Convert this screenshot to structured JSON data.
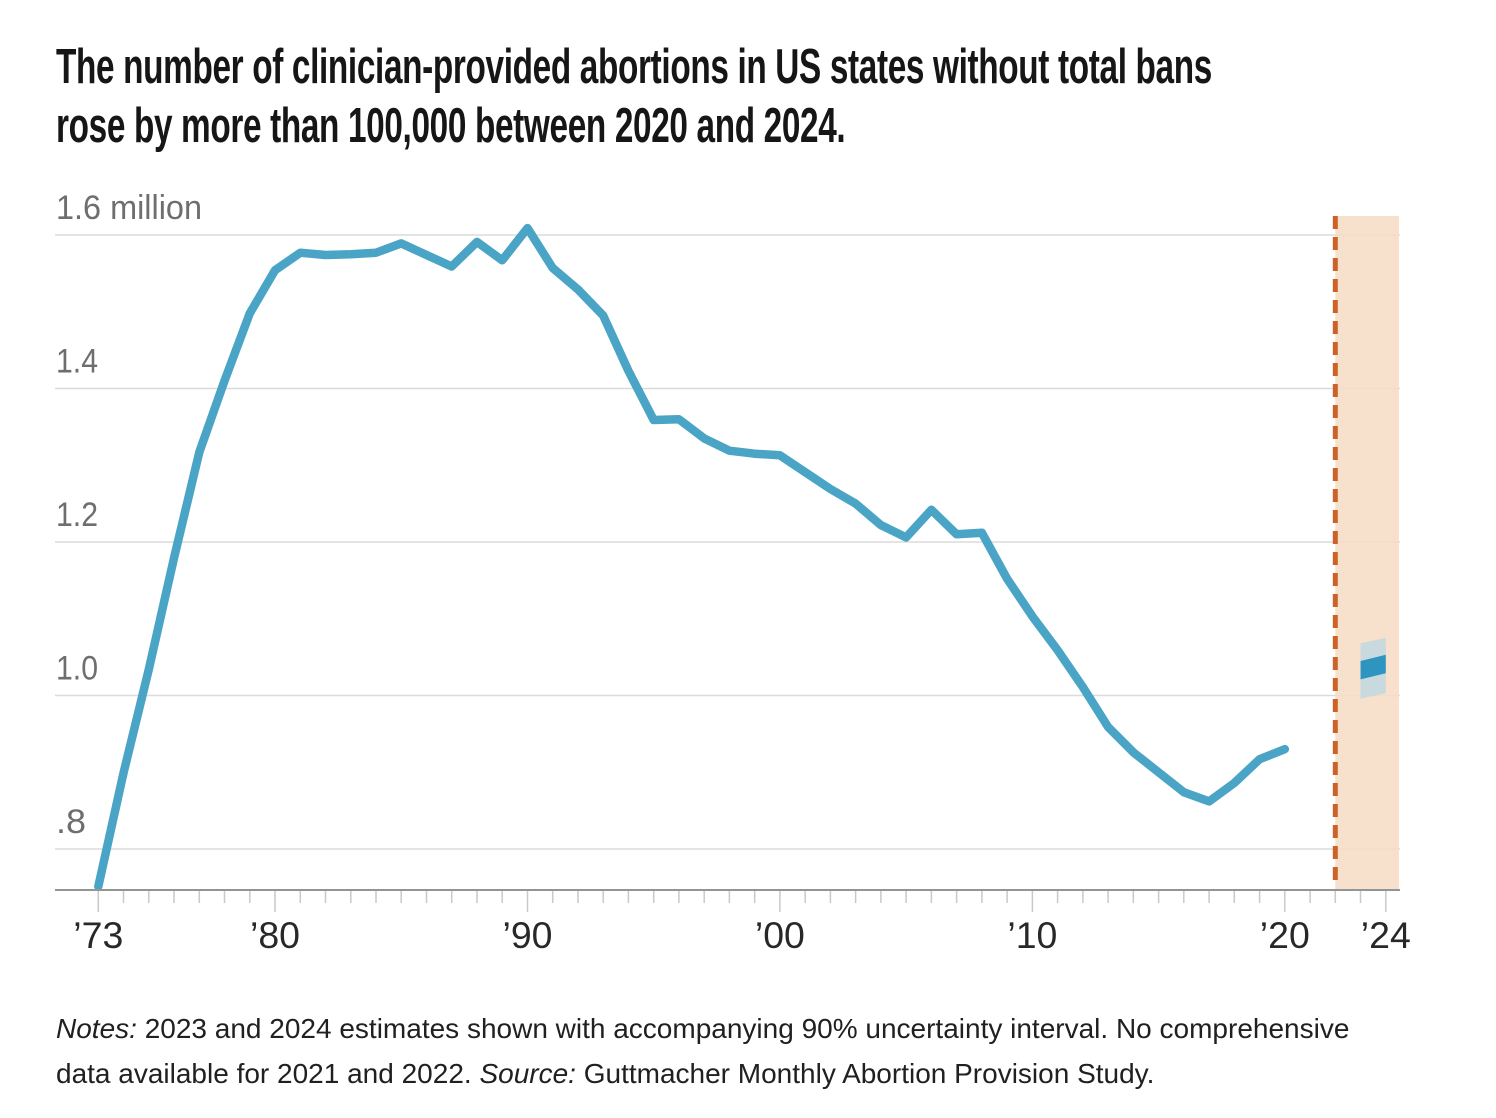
{
  "title": {
    "lines": [
      "The number of clinician-provided abortions in US states without total bans",
      "rose by more than 100,000 between 2020 and 2024."
    ]
  },
  "notes": {
    "lines": [
      {
        "parts": [
          {
            "text": "Notes:",
            "italic": true
          },
          {
            "text": " 2023 and 2024 estimates shown with accompanying 90% uncertainty interval. No comprehensive",
            "italic": false
          }
        ]
      },
      {
        "parts": [
          {
            "text": "data available for 2021 and 2022. ",
            "italic": false
          },
          {
            "text": "Source:",
            "italic": true
          },
          {
            "text": " Guttmacher Monthly Abortion Provision Study.",
            "italic": false
          }
        ]
      }
    ]
  },
  "chart_data": {
    "type": "line",
    "title": "Clinician-provided abortions in US states without total bans",
    "unit": "millions",
    "xlim": [
      1973,
      2024.5
    ],
    "ylim": [
      0.74,
      1.62
    ],
    "grid": "horizontal",
    "years": [
      1973,
      1974,
      1975,
      1976,
      1977,
      1978,
      1979,
      1980,
      1981,
      1982,
      1983,
      1984,
      1985,
      1986,
      1987,
      1988,
      1989,
      1990,
      1991,
      1992,
      1993,
      1994,
      1995,
      1996,
      1997,
      1998,
      1999,
      2000,
      2001,
      2002,
      2003,
      2004,
      2005,
      2006,
      2007,
      2008,
      2009,
      2010,
      2011,
      2012,
      2013,
      2014,
      2015,
      2016,
      2017,
      2018,
      2019,
      2020
    ],
    "values": [
      0.745,
      0.899,
      1.034,
      1.179,
      1.317,
      1.41,
      1.498,
      1.554,
      1.577,
      1.574,
      1.575,
      1.577,
      1.589,
      1.574,
      1.559,
      1.591,
      1.567,
      1.609,
      1.557,
      1.529,
      1.495,
      1.423,
      1.359,
      1.36,
      1.335,
      1.319,
      1.315,
      1.313,
      1.291,
      1.269,
      1.25,
      1.222,
      1.206,
      1.242,
      1.21,
      1.212,
      1.152,
      1.103,
      1.059,
      1.011,
      0.959,
      0.926,
      0.9,
      0.874,
      0.862,
      0.886,
      0.917,
      0.93
    ],
    "estimates": [
      {
        "year": 2023,
        "value": 1.033,
        "interval_low": 0.996,
        "interval_high": 1.068,
        "interval_label": "90% uncertainty interval"
      },
      {
        "year": 2024,
        "value": 1.041,
        "interval_low": 1.003,
        "interval_high": 1.075,
        "interval_label": "90% uncertainty interval"
      }
    ],
    "no_data_years": [
      2021,
      2022
    ],
    "cutoff_year": 2022,
    "projection_band_range": [
      2022,
      2024.5
    ],
    "y_ticks": [
      {
        "value": 1.6,
        "label": "1.6 million"
      },
      {
        "value": 1.4,
        "label": "1.4"
      },
      {
        "value": 1.2,
        "label": "1.2"
      },
      {
        "value": 1.0,
        "label": "1.0"
      },
      {
        "value": 0.8,
        "label": ".8"
      }
    ],
    "x_ticks": [
      {
        "year": 1973,
        "label": "’73"
      },
      {
        "year": 1980,
        "label": "’80"
      },
      {
        "year": 1990,
        "label": "’90"
      },
      {
        "year": 2000,
        "label": "’00"
      },
      {
        "year": 2010,
        "label": "’10"
      },
      {
        "year": 2020,
        "label": "’20"
      },
      {
        "year": 2024,
        "label": "’24"
      }
    ]
  },
  "colors": {
    "line": "#4aa4c5",
    "estimate_marker": "#2e94c0",
    "uncertainty_fill": "#c8dadd",
    "projection_band": "#f6dcc5",
    "cutoff_line": "#cc6228",
    "gridline": "#dbdbdb",
    "axis_line": "#949494",
    "tick": "#c9c9c9",
    "y_label": "#6e6e6e",
    "x_label": "#282828",
    "title_text": "#161616",
    "background": "#ffffff"
  }
}
